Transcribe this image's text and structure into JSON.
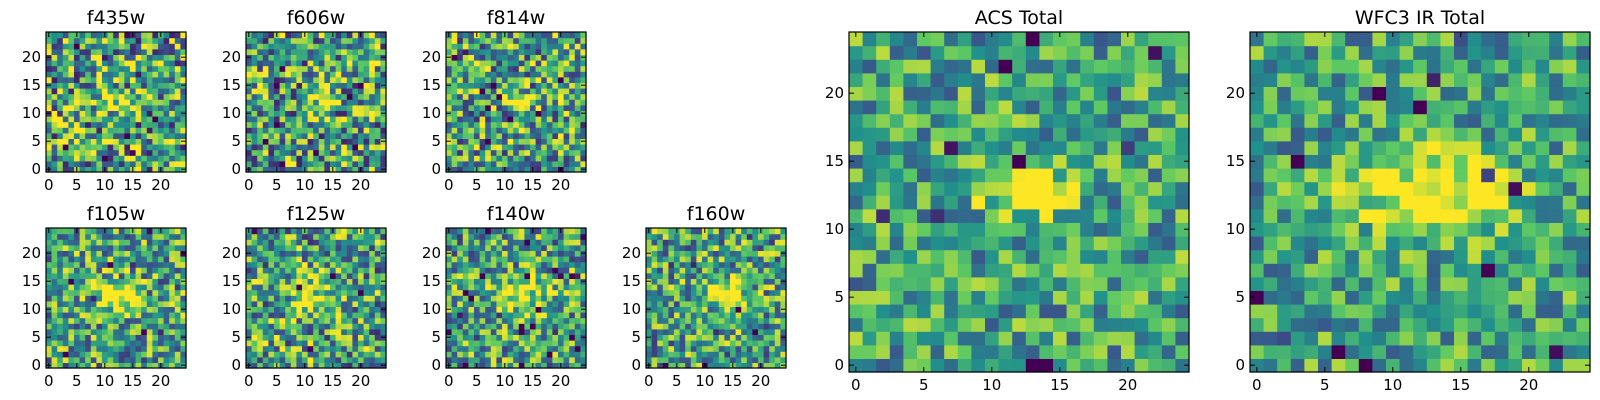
{
  "figure_title": "Multi-band image cutouts",
  "colormap": [
    "#440154",
    "#3b528b",
    "#21918c",
    "#5ec962",
    "#fde725"
  ],
  "chart_data": [
    {
      "type": "heatmap",
      "title": "f435w",
      "grid_size": 25,
      "xlim": [
        0,
        24
      ],
      "ylim": [
        0,
        24
      ],
      "xticks": [
        0,
        5,
        10,
        15,
        20
      ],
      "yticks": [
        0,
        5,
        10,
        15,
        20
      ],
      "noise": 0.62,
      "seed": 11,
      "blob": {
        "x": 12,
        "y": 12.5,
        "sx": 2.6,
        "sy": 0.9,
        "amp": 0.45
      }
    },
    {
      "type": "heatmap",
      "title": "f606w",
      "grid_size": 25,
      "xlim": [
        0,
        24
      ],
      "ylim": [
        0,
        24
      ],
      "xticks": [
        0,
        5,
        10,
        15,
        20
      ],
      "yticks": [
        0,
        5,
        10,
        15,
        20
      ],
      "noise": 0.6,
      "seed": 23,
      "blob": {
        "x": 12.5,
        "y": 12.5,
        "sx": 2.4,
        "sy": 0.9,
        "amp": 0.55
      }
    },
    {
      "type": "heatmap",
      "title": "f814w",
      "grid_size": 25,
      "xlim": [
        0,
        24
      ],
      "ylim": [
        0,
        24
      ],
      "xticks": [
        0,
        5,
        10,
        15,
        20
      ],
      "yticks": [
        0,
        5,
        10,
        15,
        20
      ],
      "noise": 0.55,
      "seed": 37,
      "blob": {
        "x": 13,
        "y": 12.5,
        "sx": 1.8,
        "sy": 0.9,
        "amp": 0.65
      }
    },
    {
      "type": "heatmap",
      "title": "f105w",
      "grid_size": 25,
      "xlim": [
        0,
        24
      ],
      "ylim": [
        0,
        24
      ],
      "xticks": [
        0,
        5,
        10,
        15,
        20
      ],
      "yticks": [
        0,
        5,
        10,
        15,
        20
      ],
      "noise": 0.5,
      "seed": 41,
      "blob": {
        "x": 12.5,
        "y": 12.5,
        "sx": 2.4,
        "sy": 2.2,
        "amp": 0.55
      }
    },
    {
      "type": "heatmap",
      "title": "f125w",
      "grid_size": 25,
      "xlim": [
        0,
        24
      ],
      "ylim": [
        0,
        24
      ],
      "xticks": [
        0,
        5,
        10,
        15,
        20
      ],
      "yticks": [
        0,
        5,
        10,
        15,
        20
      ],
      "noise": 0.55,
      "seed": 53,
      "blob": {
        "x": 12,
        "y": 12,
        "sx": 3.2,
        "sy": 2.6,
        "amp": 0.35
      }
    },
    {
      "type": "heatmap",
      "title": "f140w",
      "grid_size": 25,
      "xlim": [
        0,
        24
      ],
      "ylim": [
        0,
        24
      ],
      "xticks": [
        0,
        5,
        10,
        15,
        20
      ],
      "yticks": [
        0,
        5,
        10,
        15,
        20
      ],
      "noise": 0.5,
      "seed": 67,
      "blob": {
        "x": 12.5,
        "y": 12.5,
        "sx": 3.4,
        "sy": 2.2,
        "amp": 0.45
      }
    },
    {
      "type": "heatmap",
      "title": "f160w",
      "grid_size": 25,
      "xlim": [
        0,
        24
      ],
      "ylim": [
        0,
        24
      ],
      "xticks": [
        0,
        5,
        10,
        15,
        20
      ],
      "yticks": [
        0,
        5,
        10,
        15,
        20
      ],
      "noise": 0.5,
      "seed": 79,
      "blob": {
        "x": 13.5,
        "y": 13,
        "sx": 2.4,
        "sy": 1.8,
        "amp": 0.55
      }
    },
    {
      "type": "heatmap",
      "title": "ACS Total",
      "grid_size": 25,
      "xlim": [
        0,
        24
      ],
      "ylim": [
        0,
        24
      ],
      "xticks": [
        0,
        5,
        10,
        15,
        20
      ],
      "yticks": [
        0,
        5,
        10,
        15,
        20
      ],
      "noise": 0.4,
      "seed": 97,
      "blob": {
        "x": 13,
        "y": 12.5,
        "sx": 2.2,
        "sy": 0.9,
        "amp": 0.75
      }
    },
    {
      "type": "heatmap",
      "title": "WFC3 IR Total",
      "grid_size": 25,
      "xlim": [
        0,
        24
      ],
      "ylim": [
        0,
        24
      ],
      "xticks": [
        0,
        5,
        10,
        15,
        20
      ],
      "yticks": [
        0,
        5,
        10,
        15,
        20
      ],
      "noise": 0.38,
      "seed": 113,
      "blob": {
        "x": 13,
        "y": 12.5,
        "sx": 3.8,
        "sy": 2.0,
        "amp": 0.6
      }
    }
  ]
}
